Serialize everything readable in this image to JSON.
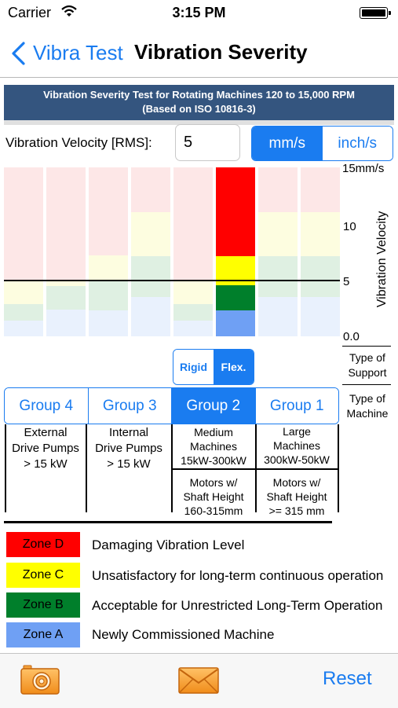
{
  "status_bar": {
    "carrier": "Carrier",
    "time": "3:15 PM"
  },
  "nav": {
    "back_label": "Vibra Test",
    "title": "Vibration Severity"
  },
  "banner": {
    "line1": "Vibration Severity Test for Rotating Machines 120 to 15,000 RPM",
    "line2": "(Based on ISO 10816-3)"
  },
  "velocity": {
    "label": "Vibration Velocity [RMS]:",
    "value": "5"
  },
  "units": {
    "options": [
      "mm/s",
      "inch/s"
    ],
    "selected": "mm/s"
  },
  "chart": {
    "y_axis_label": "Vibration Velocity",
    "y_ticks": [
      "15mm/s",
      "10",
      "5",
      "0.0"
    ],
    "reference_value": 5,
    "highlighted_column": "Group 2 Flex."
  },
  "colors": {
    "zone_d": "#ff0000",
    "zone_c": "#ffff00",
    "zone_b": "#007f2b",
    "zone_a": "#6fa0f4",
    "accent": "#1a7cf0",
    "banner": "#34557f"
  },
  "support": {
    "options": [
      "Rigid",
      "Flex."
    ],
    "selected": "Flex.",
    "side_label": "Type of Support"
  },
  "machine": {
    "side_label": "Type of Machine"
  },
  "groups": [
    {
      "label": "Group 4",
      "selected": false,
      "desc1": [
        "External",
        "Drive Pumps",
        "> 15 kW"
      ],
      "desc2": []
    },
    {
      "label": "Group 3",
      "selected": false,
      "desc1": [
        "Internal",
        "Drive Pumps",
        "> 15 kW"
      ],
      "desc2": []
    },
    {
      "label": "Group 2",
      "selected": true,
      "desc1": [
        "Medium",
        "Machines",
        "15kW-300kW"
      ],
      "desc2": [
        "Motors w/",
        "Shaft Height",
        "160-315mm"
      ]
    },
    {
      "label": "Group 1",
      "selected": false,
      "desc1": [
        "Large",
        "Machines",
        "300kW-50kW"
      ],
      "desc2": [
        "Motors w/",
        "Shaft Height",
        ">= 315 mm"
      ]
    }
  ],
  "legend": [
    {
      "zone": "Zone D",
      "desc": "Damaging Vibration Level"
    },
    {
      "zone": "Zone C",
      "desc": "Unsatisfactory for long-term continuous operation"
    },
    {
      "zone": "Zone B",
      "desc": "Acceptable for Unrestricted Long-Term Operation"
    },
    {
      "zone": "Zone A",
      "desc": "Newly Commissioned Machine"
    }
  ],
  "toolbar": {
    "camera_icon": "camera-icon",
    "mail_icon": "mail-icon",
    "reset_label": "Reset"
  }
}
